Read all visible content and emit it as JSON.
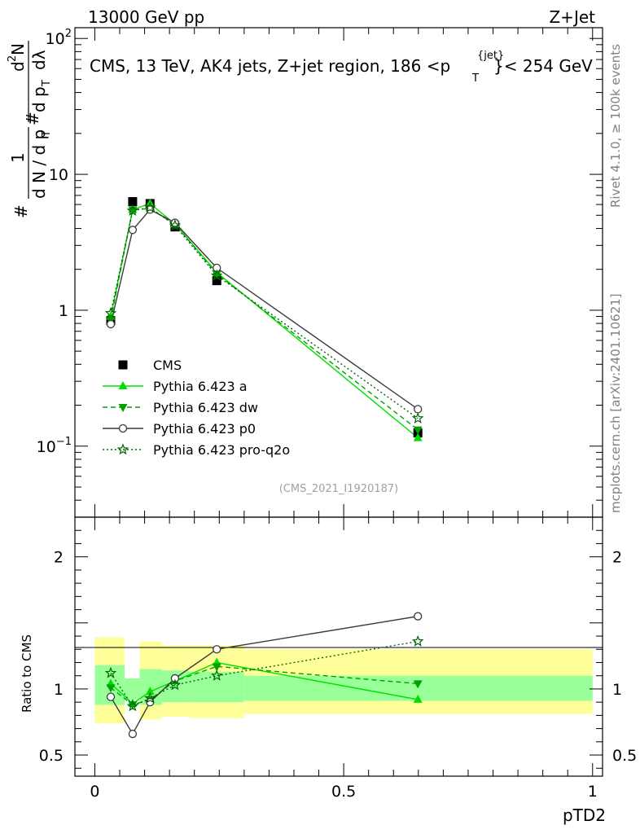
{
  "chart_data": [
    {
      "type": "line",
      "header_left": "13000 GeV pp",
      "header_right": "Z+Jet",
      "title": "CMS, 13 TeV, AK4 jets, Z+jet region, 186 <p",
      "title_sup": "{jet}",
      "title_sub": "T",
      "title_tail": "}< 254 GeV",
      "ylabel_parts": [
        "#",
        "1",
        "d N / d p",
        "T",
        "#",
        "d p",
        "T",
        "d",
        "2",
        "N",
        "dλ"
      ],
      "side_label_top": "Rivet 4.1.0, ≥ 100k events",
      "side_label_bottom": "mcplots.cern.ch [arXiv:2401.10621]",
      "analysis_id": "(CMS_2021_I1920187)",
      "yscale": "log",
      "ylim": [
        0.03,
        120
      ],
      "xlim": [
        -0.04,
        1.02
      ],
      "y_ticks": [
        {
          "value": 100,
          "label": "10",
          "sup": "2"
        },
        {
          "value": 10,
          "label": "10",
          "sup": ""
        },
        {
          "value": 1,
          "label": "1",
          "sup": ""
        },
        {
          "value": 0.1,
          "label": "10",
          "sup": "−1"
        }
      ],
      "legend_position": "lower-left",
      "series": [
        {
          "name": "CMS",
          "color": "#000000",
          "marker": "square",
          "line": "none",
          "x": [
            0.032,
            0.076,
            0.111,
            0.161,
            0.245,
            0.649
          ],
          "y": [
            0.84,
            6.3,
            6.1,
            4.1,
            1.65,
            0.125
          ]
        },
        {
          "name": "Pythia 6.423 a",
          "color": "#00e000",
          "marker": "triangle-up",
          "line": "solid",
          "x": [
            0.032,
            0.076,
            0.111,
            0.161,
            0.245,
            0.649
          ],
          "y": [
            0.9,
            5.5,
            6.1,
            4.3,
            1.9,
            0.115
          ]
        },
        {
          "name": "Pythia 6.423 dw",
          "color": "#00a000",
          "marker": "triangle-down",
          "line": "dashed",
          "x": [
            0.032,
            0.076,
            0.111,
            0.161,
            0.245,
            0.649
          ],
          "y": [
            0.85,
            5.5,
            5.6,
            4.3,
            1.85,
            0.132
          ]
        },
        {
          "name": "Pythia 6.423 p0",
          "color": "#3a3a3a",
          "marker": "circle-open",
          "line": "solid",
          "x": [
            0.032,
            0.076,
            0.111,
            0.161,
            0.245,
            0.649
          ],
          "y": [
            0.79,
            3.9,
            5.5,
            4.4,
            2.05,
            0.187
          ]
        },
        {
          "name": "Pythia 6.423 pro-q2o",
          "color": "#006600",
          "marker": "star-open",
          "line": "dotted",
          "x": [
            0.032,
            0.076,
            0.111,
            0.161,
            0.245,
            0.649
          ],
          "y": [
            0.95,
            5.4,
            5.7,
            4.2,
            1.8,
            0.16
          ]
        }
      ]
    },
    {
      "type": "line",
      "ylabel": "Ratio to CMS",
      "xlabel": "pTD2",
      "ylim": [
        0.34,
        2.3
      ],
      "xlim": [
        -0.04,
        1.02
      ],
      "x_ticks": [
        {
          "value": 0,
          "label": "0"
        },
        {
          "value": 0.5,
          "label": "0.5"
        },
        {
          "value": 1,
          "label": "1"
        }
      ],
      "y_ticks": [
        {
          "value": 2,
          "label": "2"
        },
        {
          "value": 1.5,
          "label": ""
        },
        {
          "value": 1,
          "label": "1"
        },
        {
          "value": 0.5,
          "label": "0.5"
        }
      ],
      "uncertainty_bands": {
        "edges": [
          0.0,
          0.06,
          0.09,
          0.135,
          0.19,
          0.3,
          1.0
        ],
        "stat_low": [
          0.88,
          0.92,
          0.88,
          0.9,
          0.9,
          0.91
        ],
        "stat_high": [
          1.18,
          1.08,
          1.15,
          1.14,
          1.13,
          1.1
        ],
        "total_low": [
          0.74,
          0.93,
          0.77,
          0.79,
          0.78,
          0.81
        ],
        "total_high": [
          1.39,
          1.07,
          1.36,
          1.33,
          1.33,
          1.3
        ]
      },
      "series": [
        {
          "name": "Pythia 6.423 a",
          "color": "#00e000",
          "marker": "triangle-up",
          "line": "solid",
          "x": [
            0.032,
            0.076,
            0.111,
            0.161,
            0.245,
            0.649
          ],
          "y": [
            1.04,
            0.89,
            0.98,
            1.06,
            1.2,
            0.92
          ]
        },
        {
          "name": "Pythia 6.423 dw",
          "color": "#00a000",
          "marker": "triangle-down",
          "line": "dashed",
          "x": [
            0.032,
            0.076,
            0.111,
            0.161,
            0.245,
            0.649
          ],
          "y": [
            1.01,
            0.88,
            0.92,
            1.06,
            1.17,
            1.04
          ]
        },
        {
          "name": "Pythia 6.423 p0",
          "color": "#3a3a3a",
          "marker": "circle-open",
          "line": "solid",
          "x": [
            0.032,
            0.076,
            0.111,
            0.161,
            0.245,
            0.649
          ],
          "y": [
            0.94,
            0.66,
            0.9,
            1.08,
            1.3,
            1.55
          ]
        },
        {
          "name": "Pythia 6.423 pro-q2o",
          "color": "#006600",
          "marker": "star-open",
          "line": "dotted",
          "x": [
            0.032,
            0.076,
            0.111,
            0.161,
            0.245,
            0.649
          ],
          "y": [
            1.12,
            0.87,
            0.93,
            1.03,
            1.1,
            1.36
          ]
        }
      ]
    }
  ]
}
